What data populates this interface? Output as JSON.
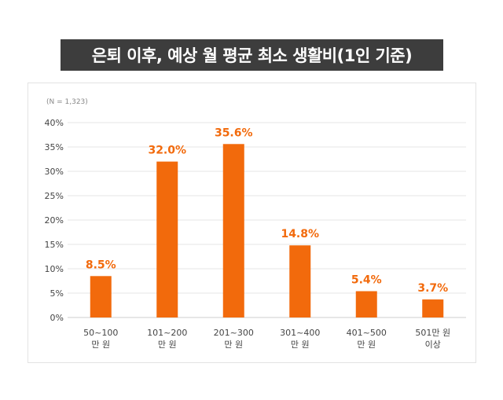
{
  "title": "은퇴 이후, 예상 월 평균 최소 생활비(1인 기준)",
  "note": "(N = 1,323)",
  "colors": {
    "bar": "#f26a0c",
    "label": "#f26a0c",
    "title_bg": "#3d3d3d",
    "grid": "#e6e6e6",
    "axis_text": "#444444"
  },
  "chart_data": {
    "type": "bar",
    "title": "은퇴 이후, 예상 월 평균 최소 생활비(1인 기준)",
    "categories": [
      [
        "50~100",
        "만 원"
      ],
      [
        "101~200",
        "만 원"
      ],
      [
        "201~300",
        "만 원"
      ],
      [
        "301~400",
        "만 원"
      ],
      [
        "401~500",
        "만 원"
      ],
      [
        "501만 원",
        "이상"
      ]
    ],
    "values": [
      8.5,
      32.0,
      35.6,
      14.8,
      5.4,
      3.7
    ],
    "value_labels": [
      "8.5%",
      "32.0%",
      "35.6%",
      "14.8%",
      "5.4%",
      "3.7%"
    ],
    "y_ticks": [
      "0%",
      "5%",
      "10%",
      "15%",
      "20%",
      "25%",
      "30%",
      "35%",
      "40%"
    ],
    "ylim": [
      0,
      40
    ],
    "grid": true
  }
}
